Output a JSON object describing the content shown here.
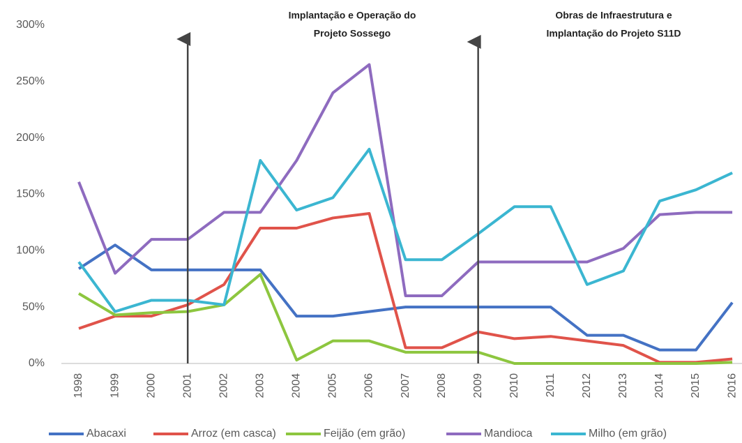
{
  "chart_data": {
    "type": "line",
    "categories": [
      "1998",
      "1999",
      "2000",
      "2001",
      "2002",
      "2003",
      "2004",
      "2005",
      "2006",
      "2007",
      "2008",
      "2009",
      "2010",
      "2011",
      "2012",
      "2013",
      "2014",
      "2015",
      "2016"
    ],
    "series": [
      {
        "name": "Abacaxi",
        "color": "#4472c4",
        "values": [
          84,
          105,
          83,
          83,
          83,
          83,
          42,
          42,
          46,
          50,
          50,
          50,
          50,
          50,
          25,
          25,
          12,
          12,
          54
        ]
      },
      {
        "name": "Arroz (em casca)",
        "color": "#e0534a",
        "values": [
          31,
          42,
          42,
          52,
          70,
          120,
          120,
          129,
          133,
          14,
          14,
          28,
          22,
          24,
          20,
          16,
          1,
          1,
          4
        ]
      },
      {
        "name": "Feijão (em grão)",
        "color": "#8dc63f",
        "values": [
          62,
          43,
          45,
          46,
          52,
          79,
          3,
          20,
          20,
          10,
          10,
          10,
          0,
          0,
          0,
          0,
          0,
          0,
          1
        ]
      },
      {
        "name": "Mandioca",
        "color": "#8e6bbf",
        "values": [
          161,
          80,
          110,
          110,
          134,
          134,
          180,
          240,
          265,
          60,
          60,
          90,
          90,
          90,
          90,
          102,
          132,
          134,
          134
        ]
      },
      {
        "name": "Milho (em grão)",
        "color": "#3bb6d1",
        "values": [
          90,
          46,
          56,
          56,
          52,
          180,
          136,
          147,
          190,
          92,
          92,
          115,
          139,
          139,
          70,
          82,
          144,
          154,
          169
        ]
      }
    ],
    "ylim": [
      0,
      300
    ],
    "yticks": [
      {
        "value": 0,
        "label": "0%"
      },
      {
        "value": 50,
        "label": "50%"
      },
      {
        "value": 100,
        "label": "100%"
      },
      {
        "value": 150,
        "label": "150%"
      },
      {
        "value": 200,
        "label": "200%"
      },
      {
        "value": 250,
        "label": "250%"
      },
      {
        "value": 300,
        "label": "300%"
      }
    ],
    "grid": false,
    "annotations": [
      {
        "category": "2001",
        "lines": [
          "Implantação e Operação do",
          "Projeto Sossego"
        ]
      },
      {
        "category": "2009",
        "lines": [
          "Obras de Infraestrutura e",
          "Implantação do Projeto S11D"
        ]
      }
    ]
  }
}
